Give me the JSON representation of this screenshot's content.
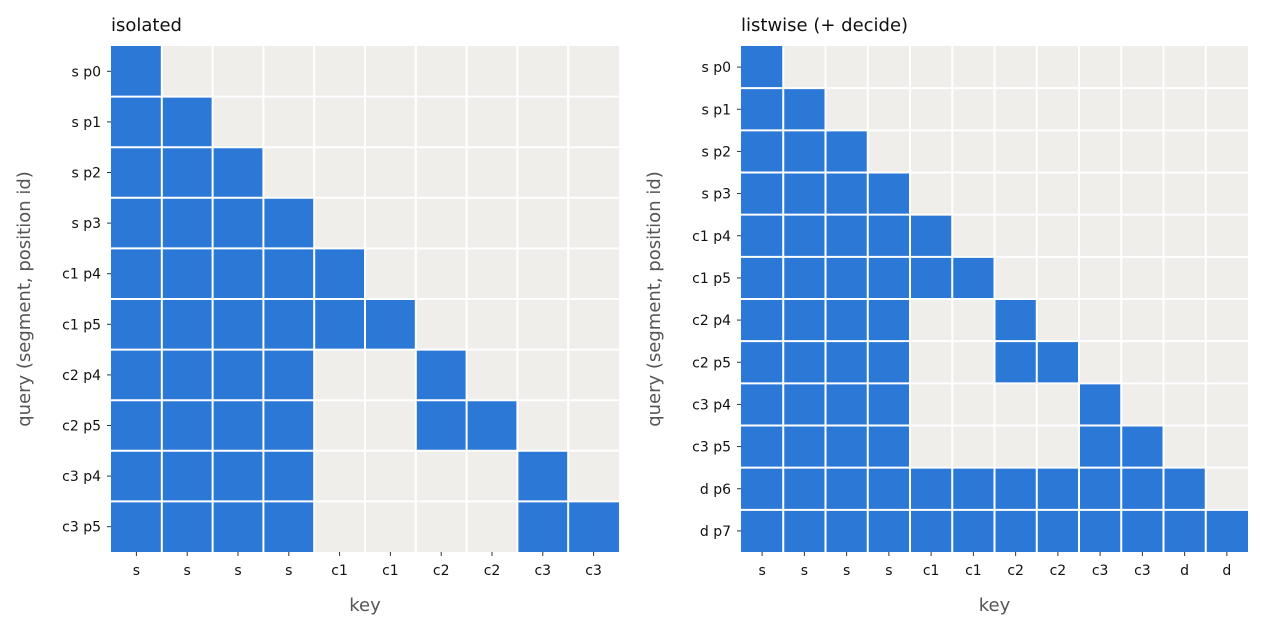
{
  "colors": {
    "on": "#2b78d6",
    "off": "#efeeeb",
    "gridline": "#ffffff",
    "text": "#111111",
    "axis_label": "#555555"
  },
  "chart_data": [
    {
      "type": "heatmap",
      "title": "isolated",
      "xlabel": "key",
      "ylabel": "query (segment, position id)",
      "x_ticks": [
        "s",
        "s",
        "s",
        "s",
        "c1",
        "c1",
        "c2",
        "c2",
        "c3",
        "c3"
      ],
      "y_ticks": [
        "s p0",
        "s p1",
        "s p2",
        "s p3",
        "c1 p4",
        "c1 p5",
        "c2 p4",
        "c2 p5",
        "c3 p4",
        "c3 p5"
      ],
      "grid": true,
      "matrix": [
        [
          1,
          0,
          0,
          0,
          0,
          0,
          0,
          0,
          0,
          0
        ],
        [
          1,
          1,
          0,
          0,
          0,
          0,
          0,
          0,
          0,
          0
        ],
        [
          1,
          1,
          1,
          0,
          0,
          0,
          0,
          0,
          0,
          0
        ],
        [
          1,
          1,
          1,
          1,
          0,
          0,
          0,
          0,
          0,
          0
        ],
        [
          1,
          1,
          1,
          1,
          1,
          0,
          0,
          0,
          0,
          0
        ],
        [
          1,
          1,
          1,
          1,
          1,
          1,
          0,
          0,
          0,
          0
        ],
        [
          1,
          1,
          1,
          1,
          0,
          0,
          1,
          0,
          0,
          0
        ],
        [
          1,
          1,
          1,
          1,
          0,
          0,
          1,
          1,
          0,
          0
        ],
        [
          1,
          1,
          1,
          1,
          0,
          0,
          0,
          0,
          1,
          0
        ],
        [
          1,
          1,
          1,
          1,
          0,
          0,
          0,
          0,
          1,
          1
        ]
      ]
    },
    {
      "type": "heatmap",
      "title": "listwise (+ decide)",
      "xlabel": "key",
      "ylabel": "query (segment, position id)",
      "x_ticks": [
        "s",
        "s",
        "s",
        "s",
        "c1",
        "c1",
        "c2",
        "c2",
        "c3",
        "c3",
        "d",
        "d"
      ],
      "y_ticks": [
        "s p0",
        "s p1",
        "s p2",
        "s p3",
        "c1 p4",
        "c1 p5",
        "c2 p4",
        "c2 p5",
        "c3 p4",
        "c3 p5",
        "d p6",
        "d p7"
      ],
      "grid": true,
      "matrix": [
        [
          1,
          0,
          0,
          0,
          0,
          0,
          0,
          0,
          0,
          0,
          0,
          0
        ],
        [
          1,
          1,
          0,
          0,
          0,
          0,
          0,
          0,
          0,
          0,
          0,
          0
        ],
        [
          1,
          1,
          1,
          0,
          0,
          0,
          0,
          0,
          0,
          0,
          0,
          0
        ],
        [
          1,
          1,
          1,
          1,
          0,
          0,
          0,
          0,
          0,
          0,
          0,
          0
        ],
        [
          1,
          1,
          1,
          1,
          1,
          0,
          0,
          0,
          0,
          0,
          0,
          0
        ],
        [
          1,
          1,
          1,
          1,
          1,
          1,
          0,
          0,
          0,
          0,
          0,
          0
        ],
        [
          1,
          1,
          1,
          1,
          0,
          0,
          1,
          0,
          0,
          0,
          0,
          0
        ],
        [
          1,
          1,
          1,
          1,
          0,
          0,
          1,
          1,
          0,
          0,
          0,
          0
        ],
        [
          1,
          1,
          1,
          1,
          0,
          0,
          0,
          0,
          1,
          0,
          0,
          0
        ],
        [
          1,
          1,
          1,
          1,
          0,
          0,
          0,
          0,
          1,
          1,
          0,
          0
        ],
        [
          1,
          1,
          1,
          1,
          1,
          1,
          1,
          1,
          1,
          1,
          1,
          0
        ],
        [
          1,
          1,
          1,
          1,
          1,
          1,
          1,
          1,
          1,
          1,
          1,
          1
        ]
      ]
    }
  ]
}
